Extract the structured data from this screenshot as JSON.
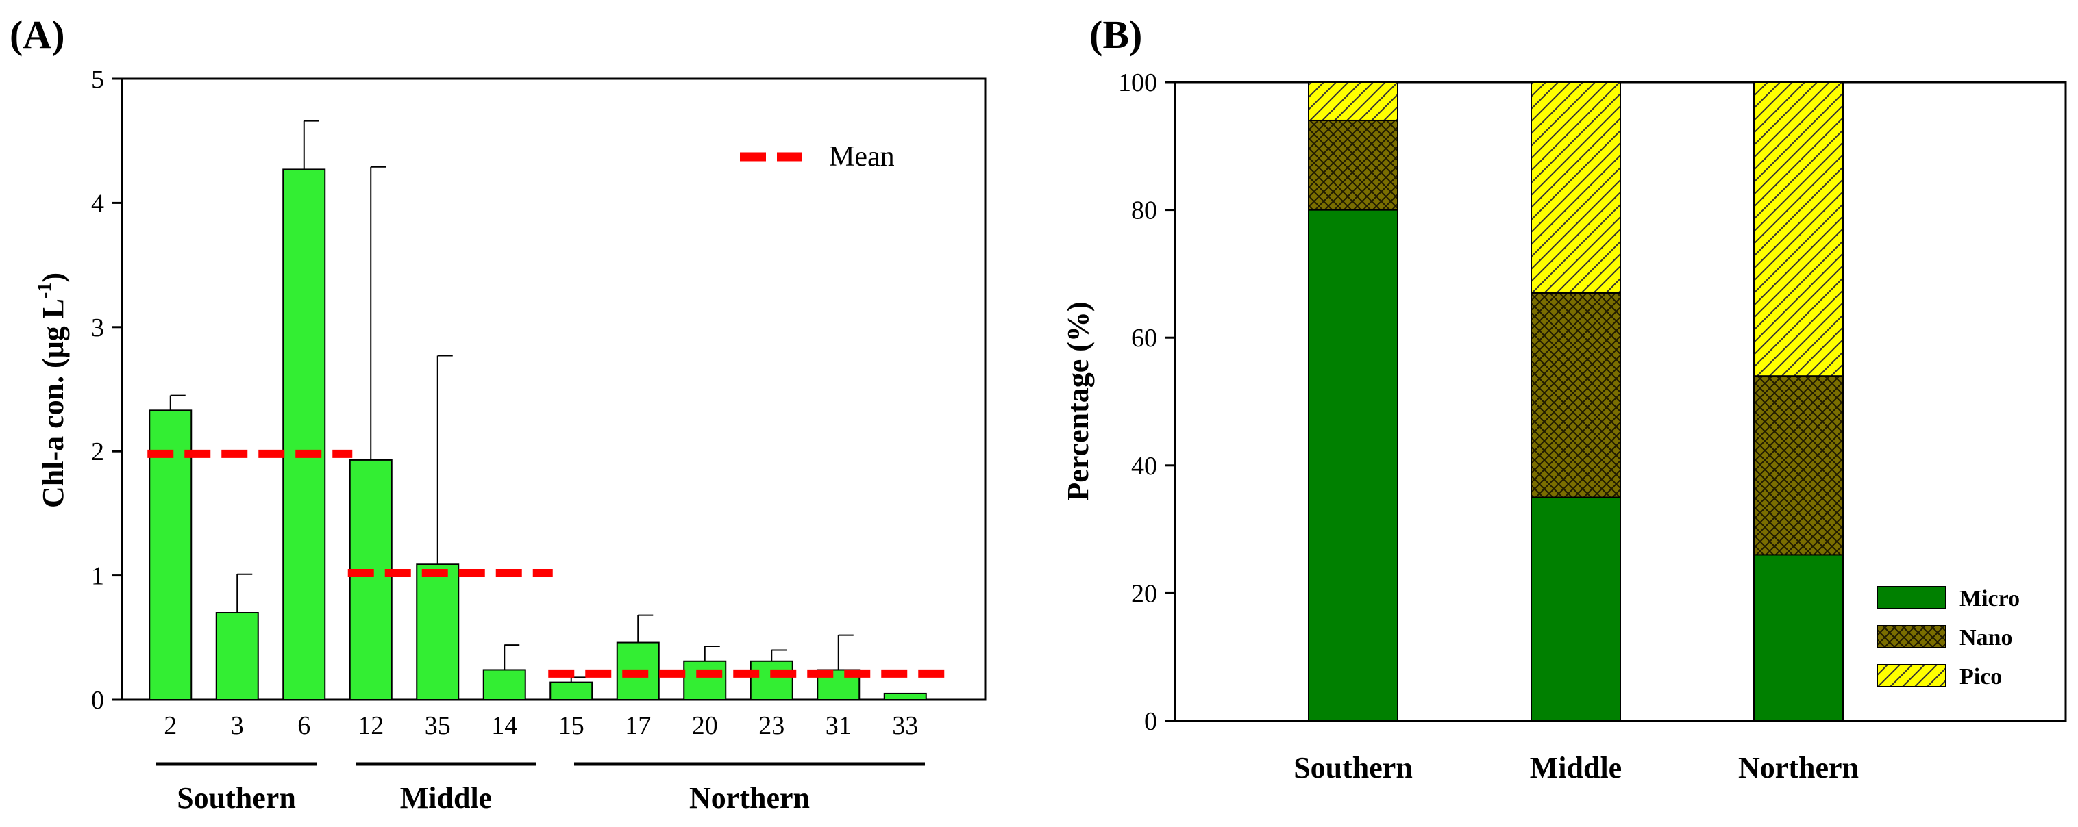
{
  "panels": {
    "A": {
      "label": "(A)"
    },
    "B": {
      "label": "(B)"
    }
  },
  "colors": {
    "bar_green": "#33ee33",
    "mean_red": "#ff0000",
    "micro": "#008000",
    "nano": "#7a6e00",
    "pico": "#ffff00"
  },
  "chart_data": [
    {
      "type": "bar",
      "panel": "(A)",
      "title": "",
      "xlabel": "",
      "ylabel": "Chl-a con. (μg L-1)",
      "ylabel_main": "Chl-a con. (μg L",
      "ylabel_sup": "-1",
      "ylabel_close": ")",
      "ylim": [
        0,
        5
      ],
      "yticks": [
        "0",
        "1",
        "2",
        "3",
        "4",
        "5"
      ],
      "categories": [
        "2",
        "3",
        "6",
        "12",
        "35",
        "14",
        "15",
        "17",
        "20",
        "23",
        "31",
        "33"
      ],
      "values": [
        2.33,
        0.7,
        4.27,
        1.93,
        1.09,
        0.24,
        0.14,
        0.46,
        0.31,
        0.31,
        0.24,
        0.05
      ],
      "error_upper": [
        0.12,
        0.31,
        0.39,
        2.36,
        1.68,
        0.2,
        0.04,
        0.22,
        0.12,
        0.09,
        0.28,
        0.0
      ],
      "groups": [
        {
          "name": "Southern",
          "start": 0,
          "end": 2,
          "mean": 1.98
        },
        {
          "name": "Middle",
          "start": 3,
          "end": 5,
          "mean": 1.02
        },
        {
          "name": "Northern",
          "start": 6,
          "end": 11,
          "mean": 0.21
        }
      ],
      "legend": {
        "label": "Mean",
        "position": "top-right"
      }
    },
    {
      "type": "bar",
      "stacked": true,
      "panel": "(B)",
      "title": "",
      "xlabel": "",
      "ylabel": "Percentage (%)",
      "ylim": [
        0,
        100
      ],
      "yticks": [
        "0",
        "20",
        "40",
        "60",
        "80",
        "100"
      ],
      "categories": [
        "Southern",
        "Middle",
        "Northern"
      ],
      "series": [
        {
          "name": "Micro",
          "values": [
            80,
            35,
            26
          ]
        },
        {
          "name": "Nano",
          "values": [
            14,
            32,
            28
          ]
        },
        {
          "name": "Pico",
          "values": [
            6,
            33,
            46
          ]
        }
      ],
      "legend": {
        "position": "bottom-right"
      }
    }
  ]
}
